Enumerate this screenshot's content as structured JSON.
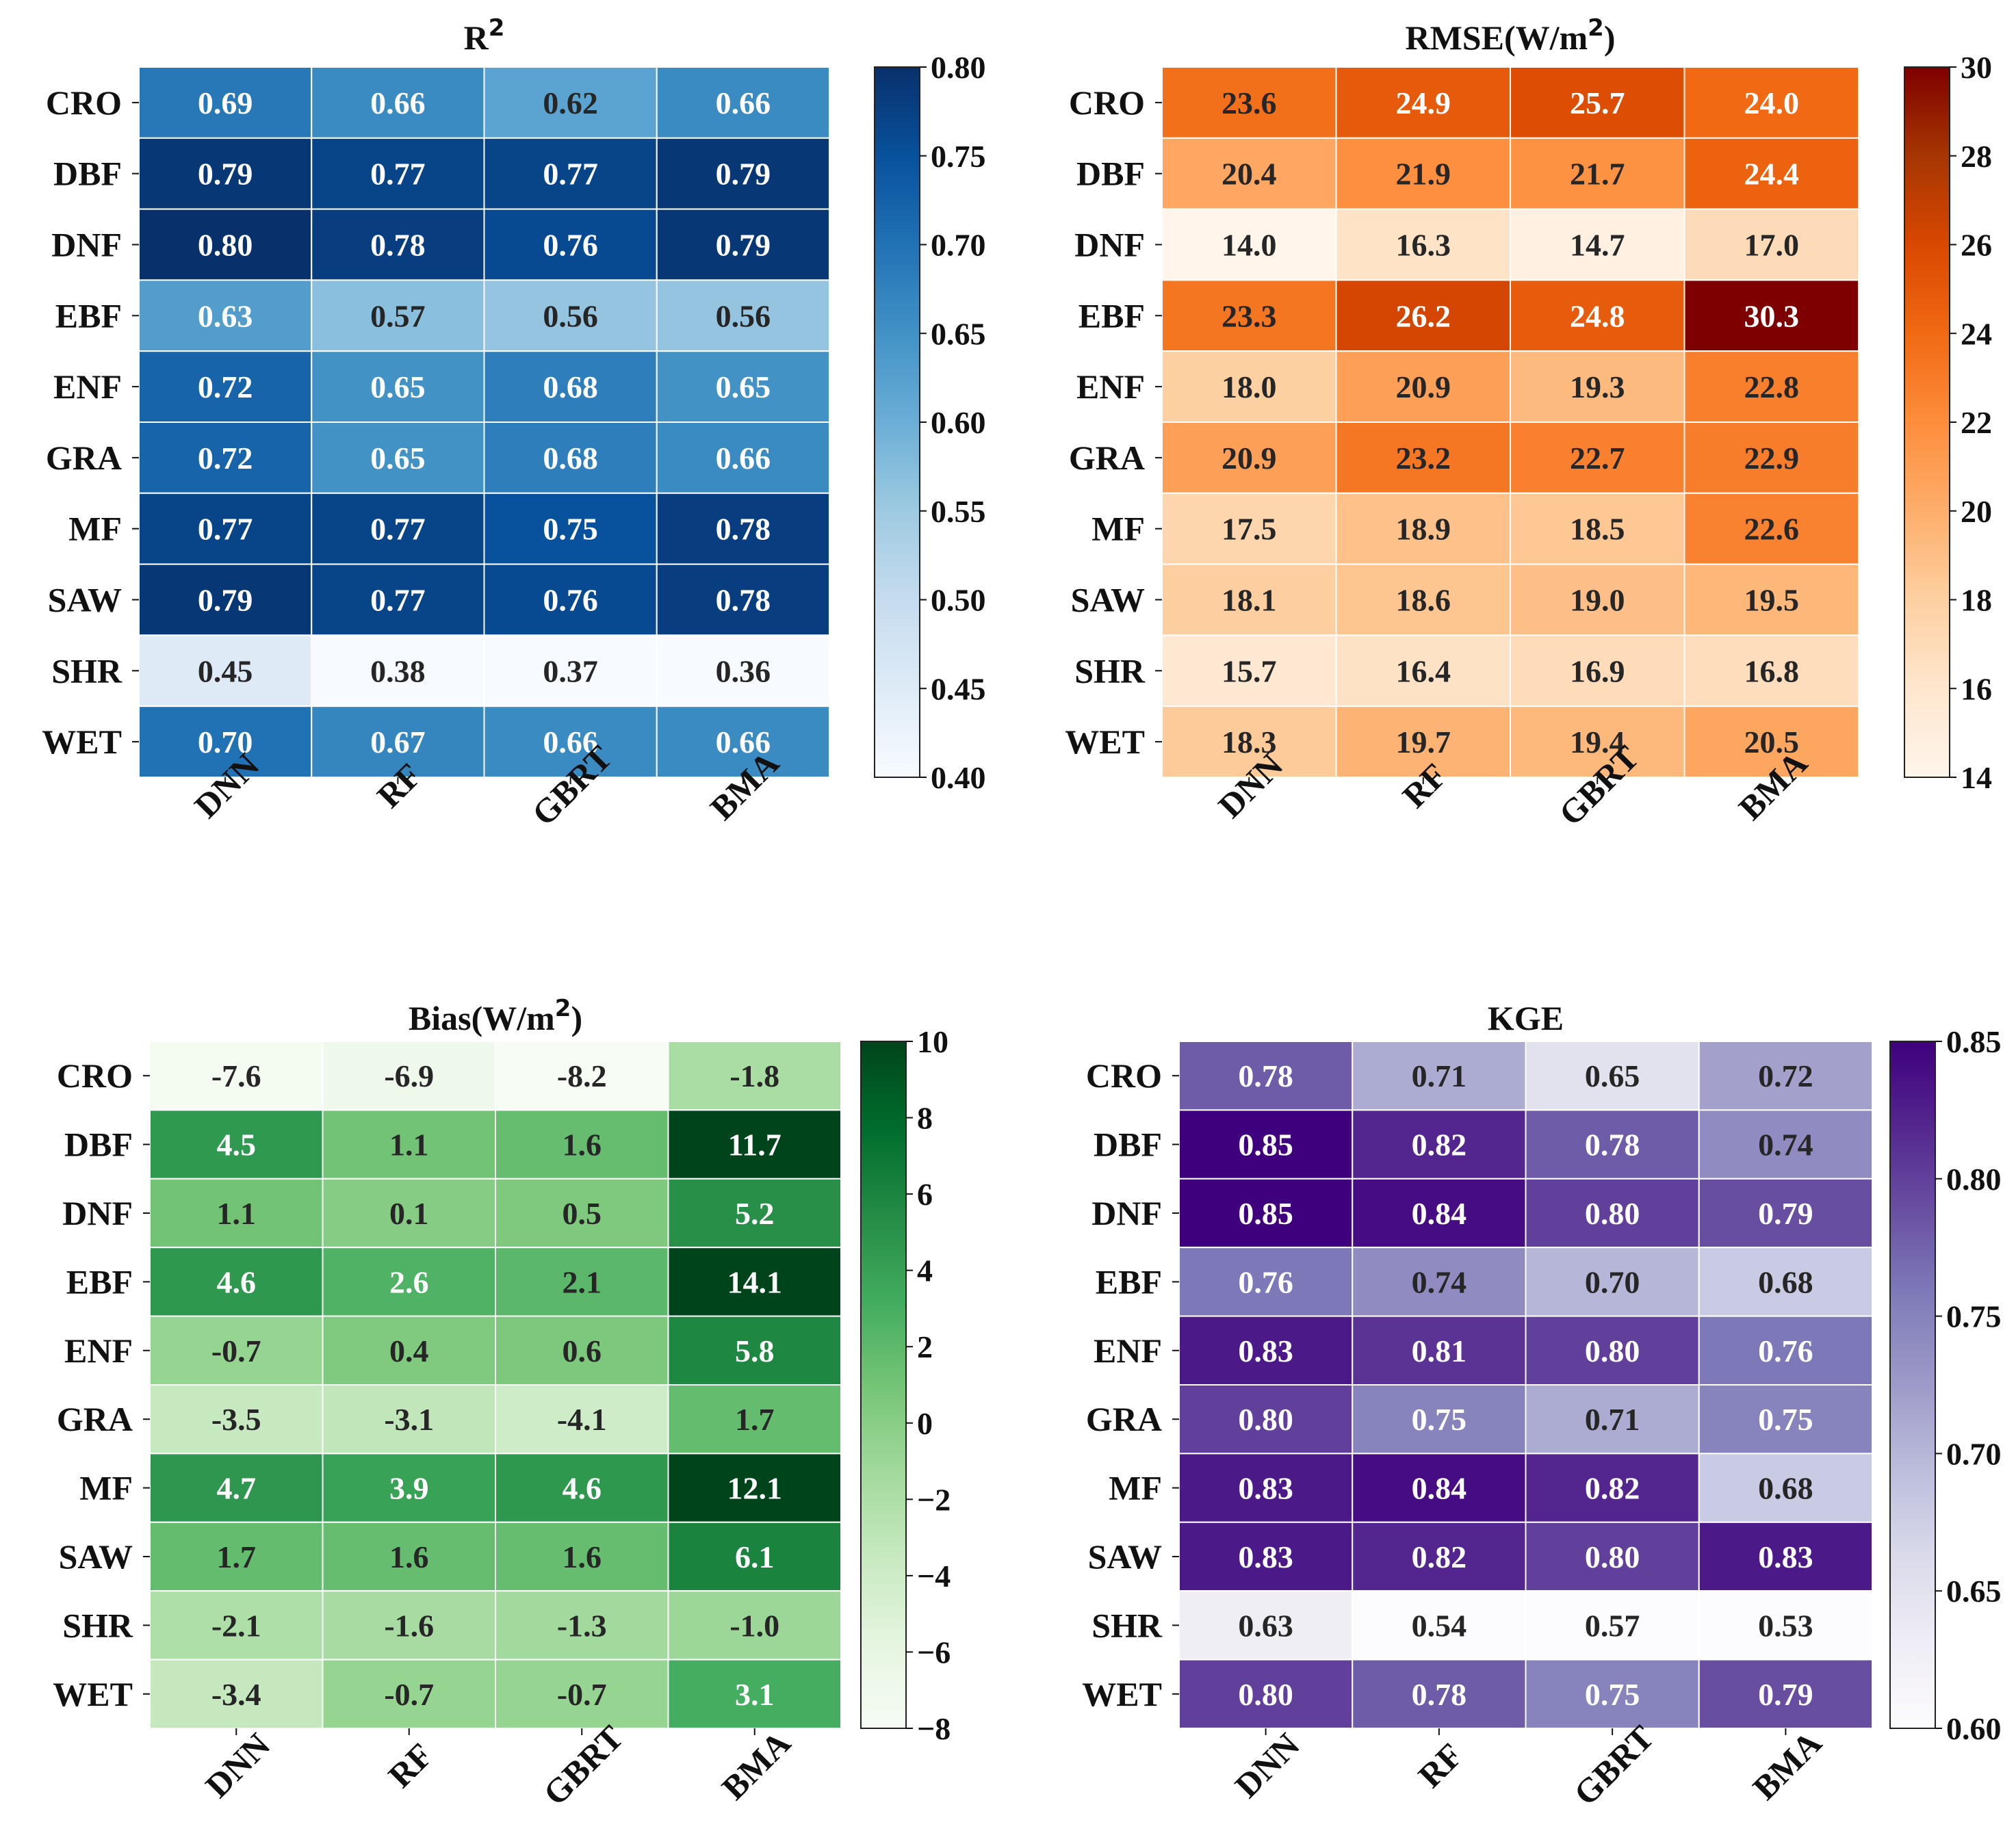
{
  "chart_data": [
    {
      "type": "heatmap",
      "title": "R²",
      "title_main": "R",
      "title_sup": "2",
      "colormap": "Blues",
      "rows": [
        "CRO",
        "DBF",
        "DNF",
        "EBF",
        "ENF",
        "GRA",
        "MF",
        "SAW",
        "SHR",
        "WET"
      ],
      "columns": [
        "DNN",
        "RF",
        "GBRT",
        "BMA"
      ],
      "values": [
        [
          0.69,
          0.66,
          0.62,
          0.66
        ],
        [
          0.79,
          0.77,
          0.77,
          0.79
        ],
        [
          0.8,
          0.78,
          0.76,
          0.79
        ],
        [
          0.63,
          0.57,
          0.56,
          0.56
        ],
        [
          0.72,
          0.65,
          0.68,
          0.65
        ],
        [
          0.72,
          0.65,
          0.68,
          0.66
        ],
        [
          0.77,
          0.77,
          0.75,
          0.78
        ],
        [
          0.79,
          0.77,
          0.76,
          0.78
        ],
        [
          0.45,
          0.38,
          0.37,
          0.36
        ],
        [
          0.7,
          0.67,
          0.66,
          0.66
        ]
      ],
      "decimals": 2,
      "colorbar_range": [
        0.4,
        0.8
      ],
      "colorbar_ticks": [
        "0.40",
        "0.45",
        "0.50",
        "0.55",
        "0.60",
        "0.65",
        "0.70",
        "0.75",
        "0.80"
      ]
    },
    {
      "type": "heatmap",
      "title": "RMSE(W/m²)",
      "title_main": "RMSE(W/m",
      "title_sup": "2",
      "title_end": ")",
      "colormap": "OrRd",
      "rows": [
        "CRO",
        "DBF",
        "DNF",
        "EBF",
        "ENF",
        "GRA",
        "MF",
        "SAW",
        "SHR",
        "WET"
      ],
      "columns": [
        "DNN",
        "RF",
        "GBRT",
        "BMA"
      ],
      "values": [
        [
          23.6,
          24.9,
          25.7,
          24.0
        ],
        [
          20.4,
          21.9,
          21.7,
          24.4
        ],
        [
          14.0,
          16.3,
          14.7,
          17.0
        ],
        [
          23.3,
          26.2,
          24.8,
          30.3
        ],
        [
          18.0,
          20.9,
          19.3,
          22.8
        ],
        [
          20.9,
          23.2,
          22.7,
          22.9
        ],
        [
          17.5,
          18.9,
          18.5,
          22.6
        ],
        [
          18.1,
          18.6,
          19.0,
          19.5
        ],
        [
          15.7,
          16.4,
          16.9,
          16.8
        ],
        [
          18.3,
          19.7,
          19.4,
          20.5
        ]
      ],
      "decimals": 1,
      "colorbar_range": [
        14,
        30
      ],
      "colorbar_ticks": [
        "14",
        "16",
        "18",
        "20",
        "22",
        "24",
        "26",
        "28",
        "30"
      ]
    },
    {
      "type": "heatmap",
      "title": "Bias(W/m²)",
      "title_main": "Bias(W/m",
      "title_sup": "2",
      "title_end": ")",
      "colormap": "Greens",
      "rows": [
        "CRO",
        "DBF",
        "DNF",
        "EBF",
        "ENF",
        "GRA",
        "MF",
        "SAW",
        "SHR",
        "WET"
      ],
      "columns": [
        "DNN",
        "RF",
        "GBRT",
        "BMA"
      ],
      "values": [
        [
          -7.6,
          -6.9,
          -8.2,
          -1.8
        ],
        [
          4.5,
          1.1,
          1.6,
          11.7
        ],
        [
          1.1,
          0.1,
          0.5,
          5.2
        ],
        [
          4.6,
          2.6,
          2.1,
          14.1
        ],
        [
          -0.7,
          0.4,
          0.6,
          5.8
        ],
        [
          -3.5,
          -3.1,
          -4.1,
          1.7
        ],
        [
          4.7,
          3.9,
          4.6,
          12.1
        ],
        [
          1.7,
          1.6,
          1.6,
          6.1
        ],
        [
          -2.1,
          -1.6,
          -1.3,
          -1.0
        ],
        [
          -3.4,
          -0.7,
          -0.7,
          3.1
        ]
      ],
      "decimals": 1,
      "colorbar_range": [
        -8,
        10
      ],
      "colorbar_ticks": [
        "−8",
        "−6",
        "−4",
        "−2",
        "0",
        "2",
        "4",
        "6",
        "8",
        "10"
      ]
    },
    {
      "type": "heatmap",
      "title": "KGE",
      "title_main": "KGE",
      "colormap": "Purples",
      "rows": [
        "CRO",
        "DBF",
        "DNF",
        "EBF",
        "ENF",
        "GRA",
        "MF",
        "SAW",
        "SHR",
        "WET"
      ],
      "columns": [
        "DNN",
        "RF",
        "GBRT",
        "BMA"
      ],
      "values": [
        [
          0.78,
          0.71,
          0.65,
          0.72
        ],
        [
          0.85,
          0.82,
          0.78,
          0.74
        ],
        [
          0.85,
          0.84,
          0.8,
          0.79
        ],
        [
          0.76,
          0.74,
          0.7,
          0.68
        ],
        [
          0.83,
          0.81,
          0.8,
          0.76
        ],
        [
          0.8,
          0.75,
          0.71,
          0.75
        ],
        [
          0.83,
          0.84,
          0.82,
          0.68
        ],
        [
          0.83,
          0.82,
          0.8,
          0.83
        ],
        [
          0.63,
          0.54,
          0.57,
          0.53
        ],
        [
          0.8,
          0.78,
          0.75,
          0.79
        ]
      ],
      "decimals": 2,
      "colorbar_range": [
        0.6,
        0.85
      ],
      "colorbar_ticks": [
        "0.60",
        "0.65",
        "0.70",
        "0.75",
        "0.80",
        "0.85"
      ]
    }
  ],
  "colormaps": {
    "Blues": [
      "#f7fbff",
      "#deebf7",
      "#c6dbef",
      "#9ecae1",
      "#6baed6",
      "#4292c6",
      "#2171b5",
      "#08519c",
      "#08306b"
    ],
    "OrRd": [
      "#fff5eb",
      "#fee6ce",
      "#fdd0a2",
      "#fdae6b",
      "#fd8d3c",
      "#f16913",
      "#d94801",
      "#a63603",
      "#7f0000"
    ],
    "Greens": [
      "#f7fcf5",
      "#e5f5e0",
      "#c7e9c0",
      "#a1d99b",
      "#74c476",
      "#41ab5d",
      "#238b45",
      "#006d2c",
      "#00441b"
    ],
    "Purples": [
      "#fcfbfd",
      "#efedf5",
      "#dadaeb",
      "#bcbddc",
      "#9e9ac8",
      "#807dba",
      "#6a51a3",
      "#54278f",
      "#3f007d"
    ]
  }
}
